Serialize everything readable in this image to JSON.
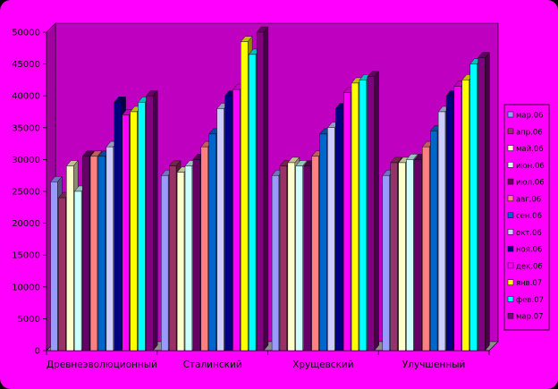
{
  "colors": {
    "background": "#FF00FF",
    "plot_wall": "#C000C0",
    "floor": "#8C8C8C",
    "legend_bg": "#FF00FF"
  },
  "chart_data": {
    "type": "bar",
    "title": "",
    "xlabel": "",
    "ylabel": "",
    "ylim": [
      0,
      50000
    ],
    "y_ticks": [
      0,
      5000,
      10000,
      15000,
      20000,
      25000,
      30000,
      35000,
      40000,
      45000,
      50000
    ],
    "categories": [
      "Древнеэволюционный",
      "Сталинский",
      "Хрущевский",
      "Улучшенный"
    ],
    "grid": false,
    "three_d": true,
    "legend_position": "right",
    "series": [
      {
        "name": "мар.06",
        "color": "#9999FF",
        "values": [
          26500,
          27500,
          27500,
          27500
        ]
      },
      {
        "name": "апр.06",
        "color": "#993366",
        "values": [
          24000,
          29000,
          29000,
          29500
        ]
      },
      {
        "name": "май.06",
        "color": "#FFFFCC",
        "values": [
          29000,
          28000,
          29500,
          29500
        ]
      },
      {
        "name": "июн.06",
        "color": "#CCFFFF",
        "values": [
          25000,
          29000,
          29000,
          30000
        ]
      },
      {
        "name": "июл.06",
        "color": "#660066",
        "values": [
          30500,
          30000,
          29000,
          30000
        ]
      },
      {
        "name": "авг.06",
        "color": "#FF8080",
        "values": [
          30500,
          32000,
          30500,
          32000
        ]
      },
      {
        "name": "сен.06",
        "color": "#0066CC",
        "values": [
          30500,
          34000,
          34000,
          34500
        ]
      },
      {
        "name": "окт.06",
        "color": "#CCCCFF",
        "values": [
          32000,
          38000,
          35000,
          37500
        ]
      },
      {
        "name": "ноя.06",
        "color": "#000080",
        "values": [
          39000,
          40000,
          38000,
          40000
        ]
      },
      {
        "name": "дек.06",
        "color": "#FF00FF",
        "values": [
          37000,
          41000,
          40500,
          41500
        ]
      },
      {
        "name": "янв.07",
        "color": "#FFFF00",
        "values": [
          37500,
          48500,
          42000,
          42500
        ]
      },
      {
        "name": "фев.07",
        "color": "#00FFFF",
        "values": [
          39000,
          46500,
          42500,
          45000
        ]
      },
      {
        "name": "мар.07",
        "color": "#800080",
        "values": [
          40000,
          50000,
          43000,
          46000
        ]
      }
    ]
  }
}
